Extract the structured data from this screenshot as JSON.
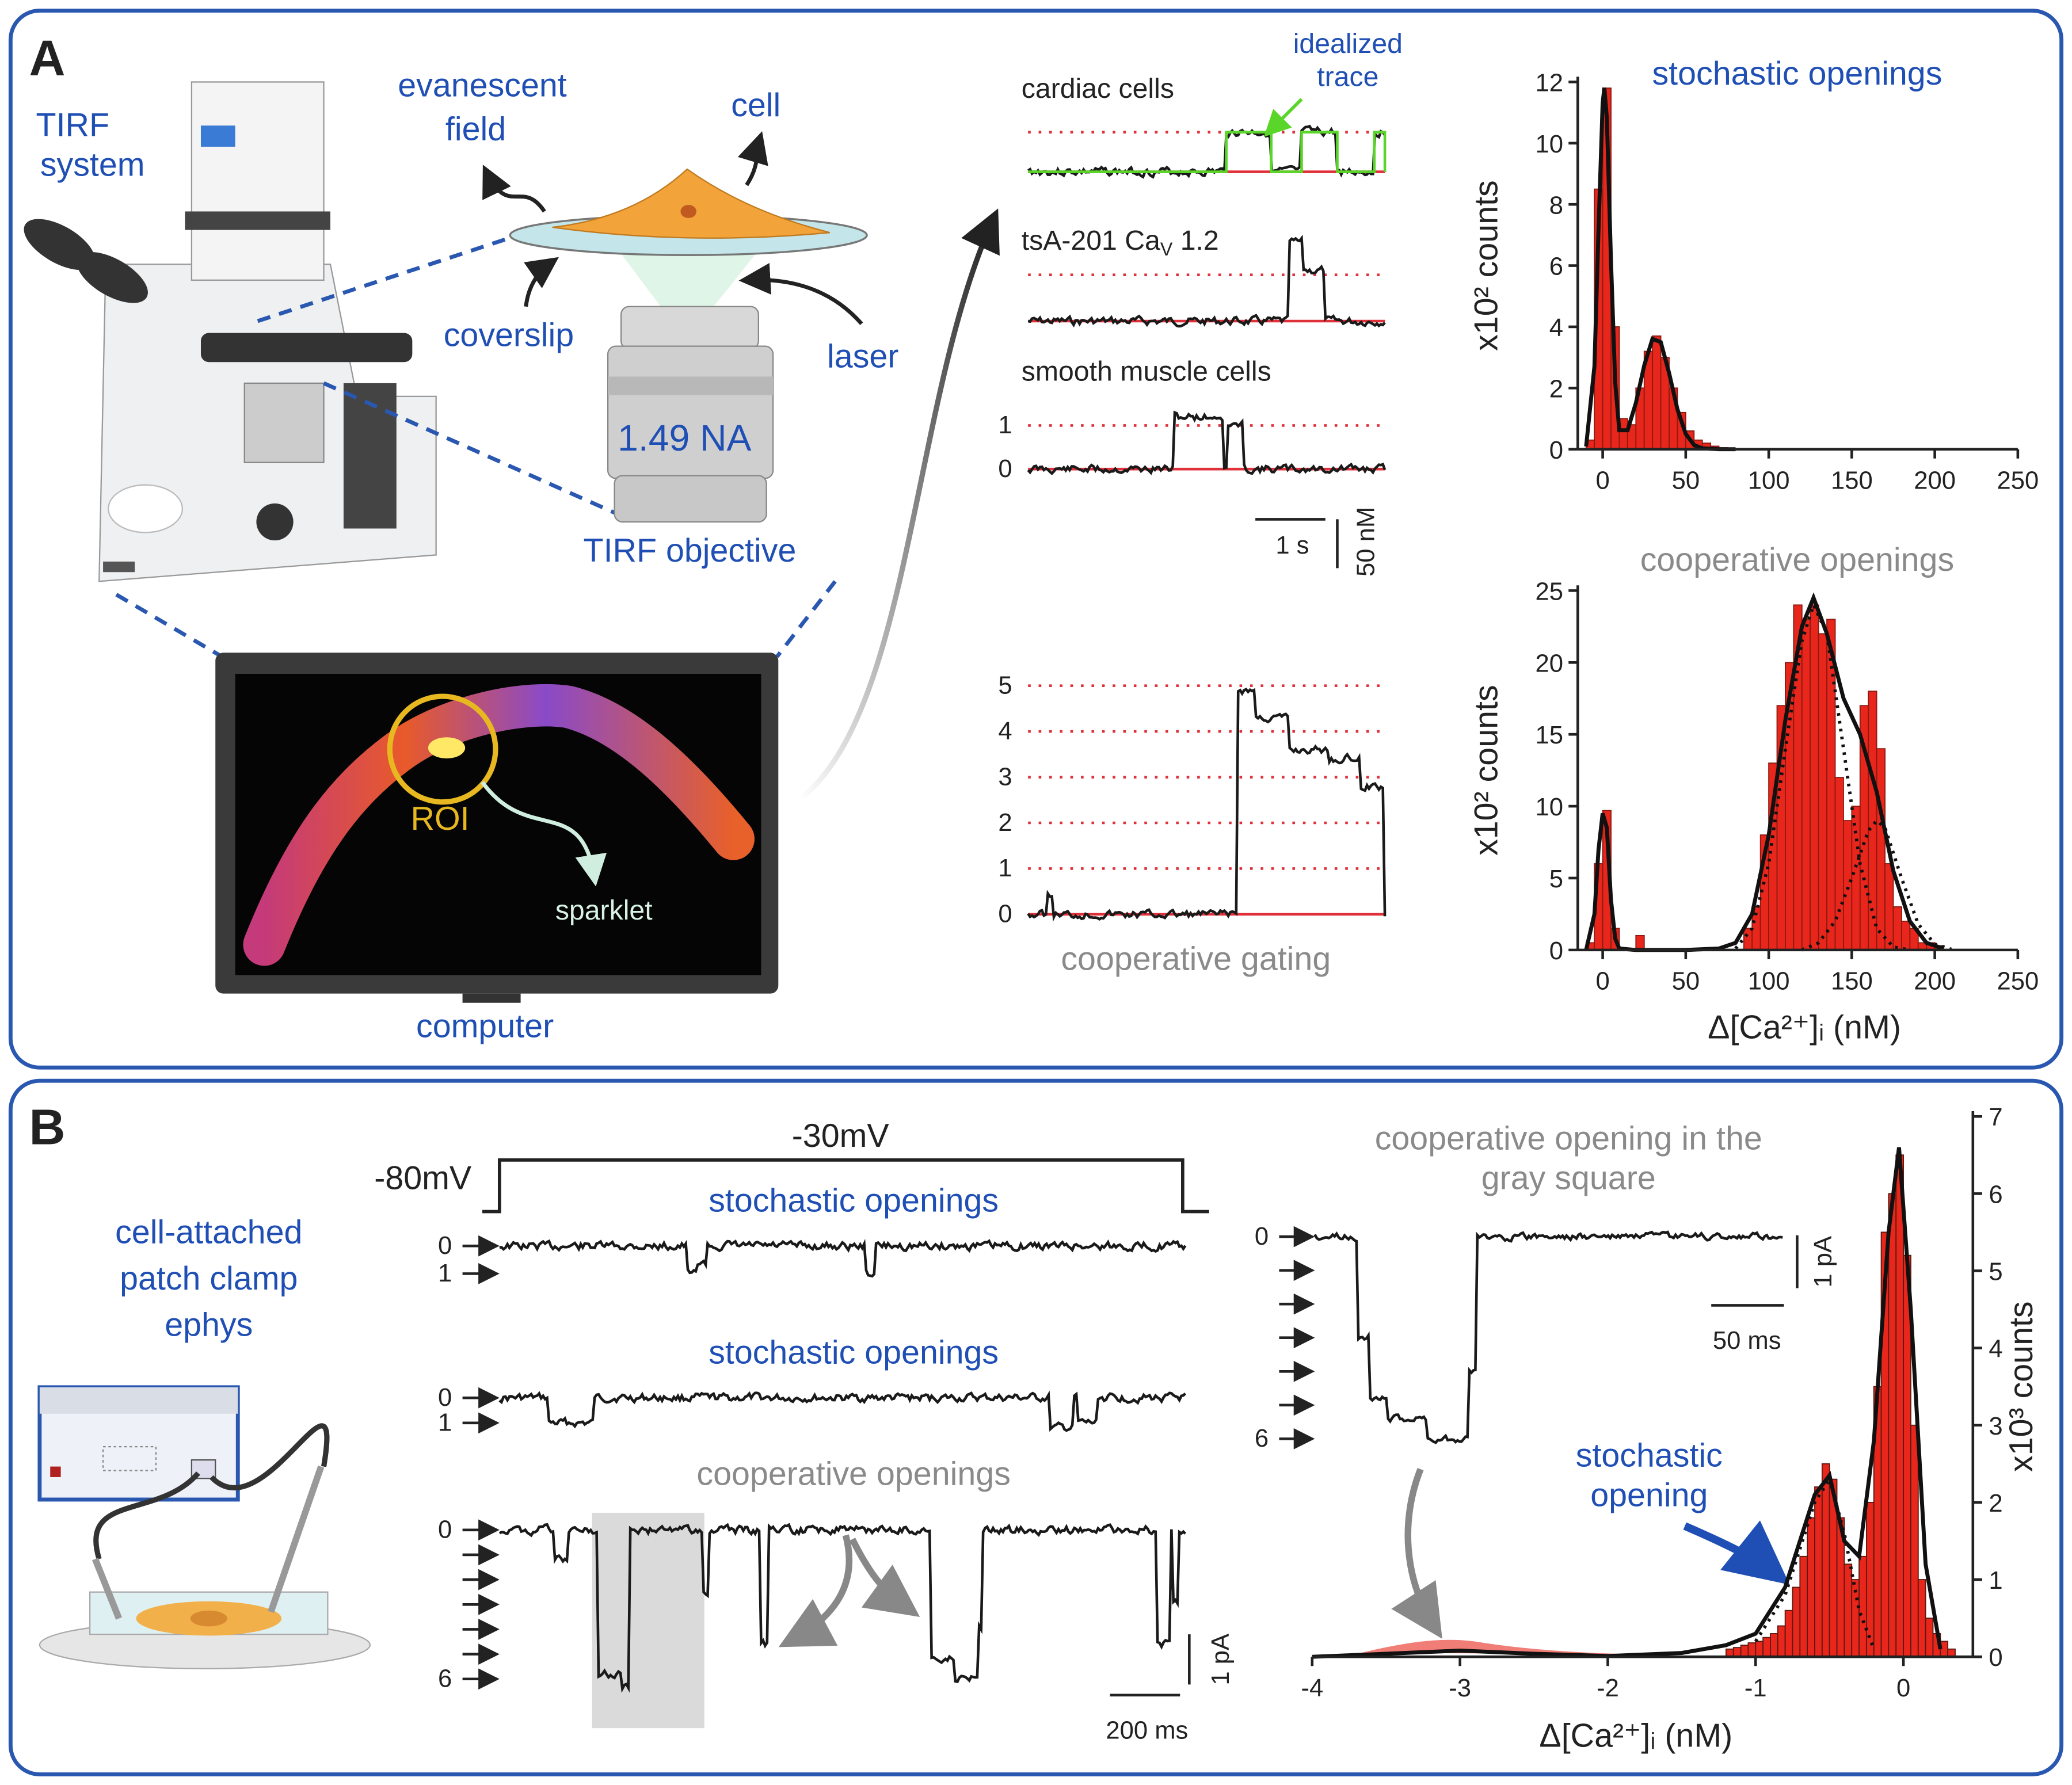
{
  "panel_a": {
    "label": "A",
    "tirf_system": [
      "TIRF",
      "system"
    ],
    "evanescent_field": [
      "evanescent",
      "field"
    ],
    "cell": "cell",
    "coverslip": "coverslip",
    "laser": "laser",
    "objective_na": "1.49 NA",
    "tirf_objective": "TIRF objective",
    "roi": "ROI",
    "sparklet": "sparklet",
    "computer": "computer"
  },
  "panel_b": {
    "label": "B",
    "setup": [
      "cell-attached",
      "patch clamp",
      "ephys"
    ]
  },
  "chart_data": [
    {
      "type": "trace",
      "series": [
        {
          "name": "cardiac cells"
        },
        {
          "name": [
            "tsA-201 Ca",
            "V",
            " 1.2"
          ]
        },
        {
          "name": "smooth muscle cells",
          "yticks": [
            0,
            1
          ]
        }
      ],
      "annotation": [
        "idealized",
        "trace"
      ],
      "xscale": "1 s",
      "yscale": "50 nM"
    },
    {
      "type": "trace",
      "title": "cooperative gating",
      "yticks": [
        0,
        1,
        2,
        3,
        4,
        5
      ]
    },
    {
      "type": "histogram",
      "title": "stochastic openings",
      "ylabel": "x10² counts",
      "bins": [
        -10,
        -5,
        0,
        5,
        10,
        15,
        20,
        25,
        30,
        35,
        40,
        45,
        50,
        55,
        60,
        65,
        70,
        75,
        80
      ],
      "values": [
        0.3,
        8.5,
        11.8,
        4,
        1,
        0.8,
        2,
        3.2,
        3.7,
        3,
        2,
        1.2,
        0.6,
        0.3,
        0.2,
        0.1,
        0.05,
        0.02
      ],
      "color": "#e8261c",
      "edgecolor": "#8a1a10",
      "xlim": [
        -15,
        250
      ],
      "xticks": [
        0,
        50,
        100,
        150,
        200,
        250
      ],
      "ylim": [
        0,
        12
      ],
      "yticks": [
        0,
        2,
        4,
        6,
        8,
        10,
        12
      ],
      "fits": [
        {
          "style": "solid",
          "x": [
            -10,
            -5,
            -2.5,
            0,
            1,
            2.5,
            5,
            7.5,
            10,
            15,
            20,
            25,
            30,
            35,
            40,
            45,
            50,
            55,
            60,
            70,
            80
          ],
          "y": [
            0.09,
            2.71,
            7.2,
            11.3,
            11.81,
            10.82,
            6.18,
            2.19,
            0.62,
            0.62,
            1.52,
            2.74,
            3.61,
            3.5,
            2.49,
            1.31,
            0.5,
            0.14,
            0.03,
            0,
            0
          ]
        }
      ]
    },
    {
      "type": "histogram",
      "title": "cooperative openings",
      "ylabel": "x10² counts",
      "xlabel": "Δ[Ca²⁺]ᵢ (nM)",
      "bins": [
        -10,
        -5,
        0,
        5,
        10,
        15,
        20,
        25,
        30,
        35,
        40,
        45,
        50,
        55,
        60,
        65,
        70,
        75,
        80,
        85,
        90,
        95,
        100,
        105,
        110,
        115,
        120,
        125,
        130,
        135,
        140,
        145,
        150,
        155,
        160,
        165,
        170,
        175,
        180,
        185,
        190,
        195,
        200,
        205
      ],
      "values": [
        0.5,
        6,
        9.7,
        1.5,
        0,
        0,
        1,
        0,
        0,
        0,
        0,
        0,
        0,
        0,
        0,
        0,
        0,
        0,
        0,
        1.5,
        3,
        8,
        13,
        17,
        20,
        24,
        23,
        24,
        22,
        23,
        12,
        9,
        10,
        17,
        18,
        14,
        6,
        3,
        2,
        1.5,
        0.5,
        0.5,
        0.3
      ],
      "color": "#e8261c",
      "edgecolor": "#8a1a10",
      "xlim": [
        -15,
        250
      ],
      "xticks": [
        0,
        50,
        100,
        150,
        200,
        250
      ],
      "ylim": [
        0,
        25
      ],
      "yticks": [
        0,
        5,
        10,
        15,
        20,
        25
      ],
      "fits": [
        {
          "style": "solid",
          "x": [
            -10,
            -5,
            -2.5,
            0,
            2.5,
            5,
            7.5,
            10,
            20,
            50,
            70,
            80,
            90,
            100,
            110,
            120,
            127,
            135,
            145,
            155,
            165,
            175,
            185,
            195,
            205
          ],
          "y": [
            0,
            2.5,
            7,
            9.5,
            8.5,
            3.5,
            0.8,
            0.1,
            0,
            0,
            0.1,
            0.5,
            2.5,
            8,
            16,
            22.5,
            24.5,
            22,
            17.5,
            15,
            11,
            5.5,
            2,
            0.5,
            0.1
          ]
        },
        {
          "style": "dotted",
          "x": [
            80,
            90,
            100,
            110,
            120,
            127,
            135,
            145,
            155,
            165,
            175,
            185
          ],
          "y": [
            0.1,
            1.5,
            6,
            14,
            21.5,
            24,
            22,
            14,
            6,
            1.5,
            0.2,
            0
          ]
        },
        {
          "style": "dotted",
          "x": [
            120,
            130,
            140,
            150,
            160,
            165,
            170,
            180,
            190,
            200,
            210
          ],
          "y": [
            0,
            0.5,
            2,
            5,
            8.3,
            9,
            8.5,
            5,
            1.8,
            0.4,
            0.05
          ]
        }
      ]
    },
    {
      "type": "trace",
      "protocol": {
        "holding": "-80mV",
        "step": "-30mV"
      },
      "series": [
        {
          "name": "stochastic openings",
          "yticks": [
            0,
            1
          ]
        },
        {
          "name": "stochastic openings",
          "yticks": [
            0,
            1
          ]
        },
        {
          "name": "cooperative openings",
          "yticks": [
            0,
            6
          ]
        }
      ],
      "xscale": "200 ms",
      "yscale": "1 pA"
    },
    {
      "type": "trace",
      "title": [
        "cooperative opening in the",
        "gray square"
      ],
      "yticks": [
        0,
        6
      ],
      "xscale": "50 ms",
      "yscale": "1 pA"
    },
    {
      "type": "histogram",
      "ylabel": "x10³ counts",
      "xlabel": "Δ[Ca²⁺]ᵢ (nM)",
      "yaxis": "right",
      "annotation": [
        "stochastic",
        "opening"
      ],
      "bins": [
        -1.2,
        -1.15,
        -1.1,
        -1.05,
        -1,
        -0.95,
        -0.9,
        -0.85,
        -0.8,
        -0.75,
        -0.7,
        -0.65,
        -0.6,
        -0.55,
        -0.5,
        -0.45,
        -0.4,
        -0.35,
        -0.3,
        -0.25,
        -0.2,
        -0.15,
        -0.1,
        -0.05,
        0,
        0.05,
        0.1,
        0.15,
        0.2,
        0.25,
        0.3,
        0.35
      ],
      "values": [
        0.1,
        0.12,
        0.15,
        0.18,
        0.2,
        0.25,
        0.3,
        0.4,
        0.6,
        0.9,
        1.3,
        1.8,
        2.2,
        2.5,
        2.3,
        1.8,
        1.2,
        1.0,
        1.3,
        2.0,
        3.5,
        5.5,
        6.0,
        6.5,
        5.2,
        3.0,
        1.0,
        0.5,
        0.3,
        0.2,
        0.1
      ],
      "color": "#e8261c",
      "edgecolor": "#5a1a10",
      "xlim": [
        -4,
        0.47
      ],
      "xticks": [
        -4,
        -3,
        -2,
        -1,
        0
      ],
      "ylim": [
        0,
        7
      ],
      "yticks": [
        0,
        1,
        2,
        3,
        4,
        5,
        6,
        7
      ],
      "fits": [
        {
          "style": "solid",
          "x": [
            -4,
            -3.5,
            -3,
            -2.5,
            -2,
            -1.5,
            -1.2,
            -1,
            -0.8,
            -0.6,
            -0.5,
            -0.4,
            -0.3,
            -0.2,
            -0.1,
            -0.03,
            0.05,
            0.15,
            0.25
          ],
          "y": [
            0,
            0.04,
            0.08,
            0.04,
            0.01,
            0.05,
            0.15,
            0.3,
            0.9,
            2.1,
            2.35,
            1.5,
            1.3,
            2.8,
            5.5,
            6.6,
            4.5,
            1.2,
            0.1
          ]
        },
        {
          "style": "dotted",
          "x": [
            -1,
            -0.8,
            -0.6,
            -0.5,
            -0.4,
            -0.3,
            -0.2
          ],
          "y": [
            0.2,
            0.8,
            2.0,
            2.3,
            1.6,
            0.6,
            0.1
          ]
        }
      ]
    }
  ]
}
